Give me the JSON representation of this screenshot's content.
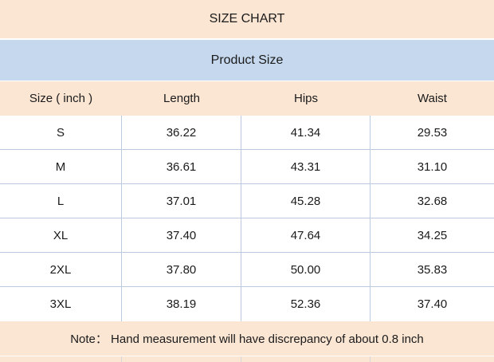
{
  "chart_data": {
    "type": "table",
    "title": "SIZE CHART",
    "subtitle": "Product Size",
    "unit": "inch",
    "columns": [
      "Size ( inch )",
      "Length",
      "Hips",
      "Waist"
    ],
    "rows": [
      [
        "S",
        "36.22",
        "41.34",
        "29.53"
      ],
      [
        "M",
        "36.61",
        "43.31",
        "31.10"
      ],
      [
        "L",
        "37.01",
        "45.28",
        "32.68"
      ],
      [
        "XL",
        "37.40",
        "47.64",
        "34.25"
      ],
      [
        "2XL",
        "37.80",
        "50.00",
        "35.83"
      ],
      [
        "3XL",
        "38.19",
        "52.36",
        "37.40"
      ]
    ],
    "note": "Note： Hand measurement will have discrepancy of about 0.8 inch"
  },
  "colors": {
    "peach_band": "#fbe5d3",
    "blue_band": "#c5d8ee",
    "grid_line": "#bccadf",
    "row_background": "#ffffff",
    "text": "#1b1b1b"
  }
}
